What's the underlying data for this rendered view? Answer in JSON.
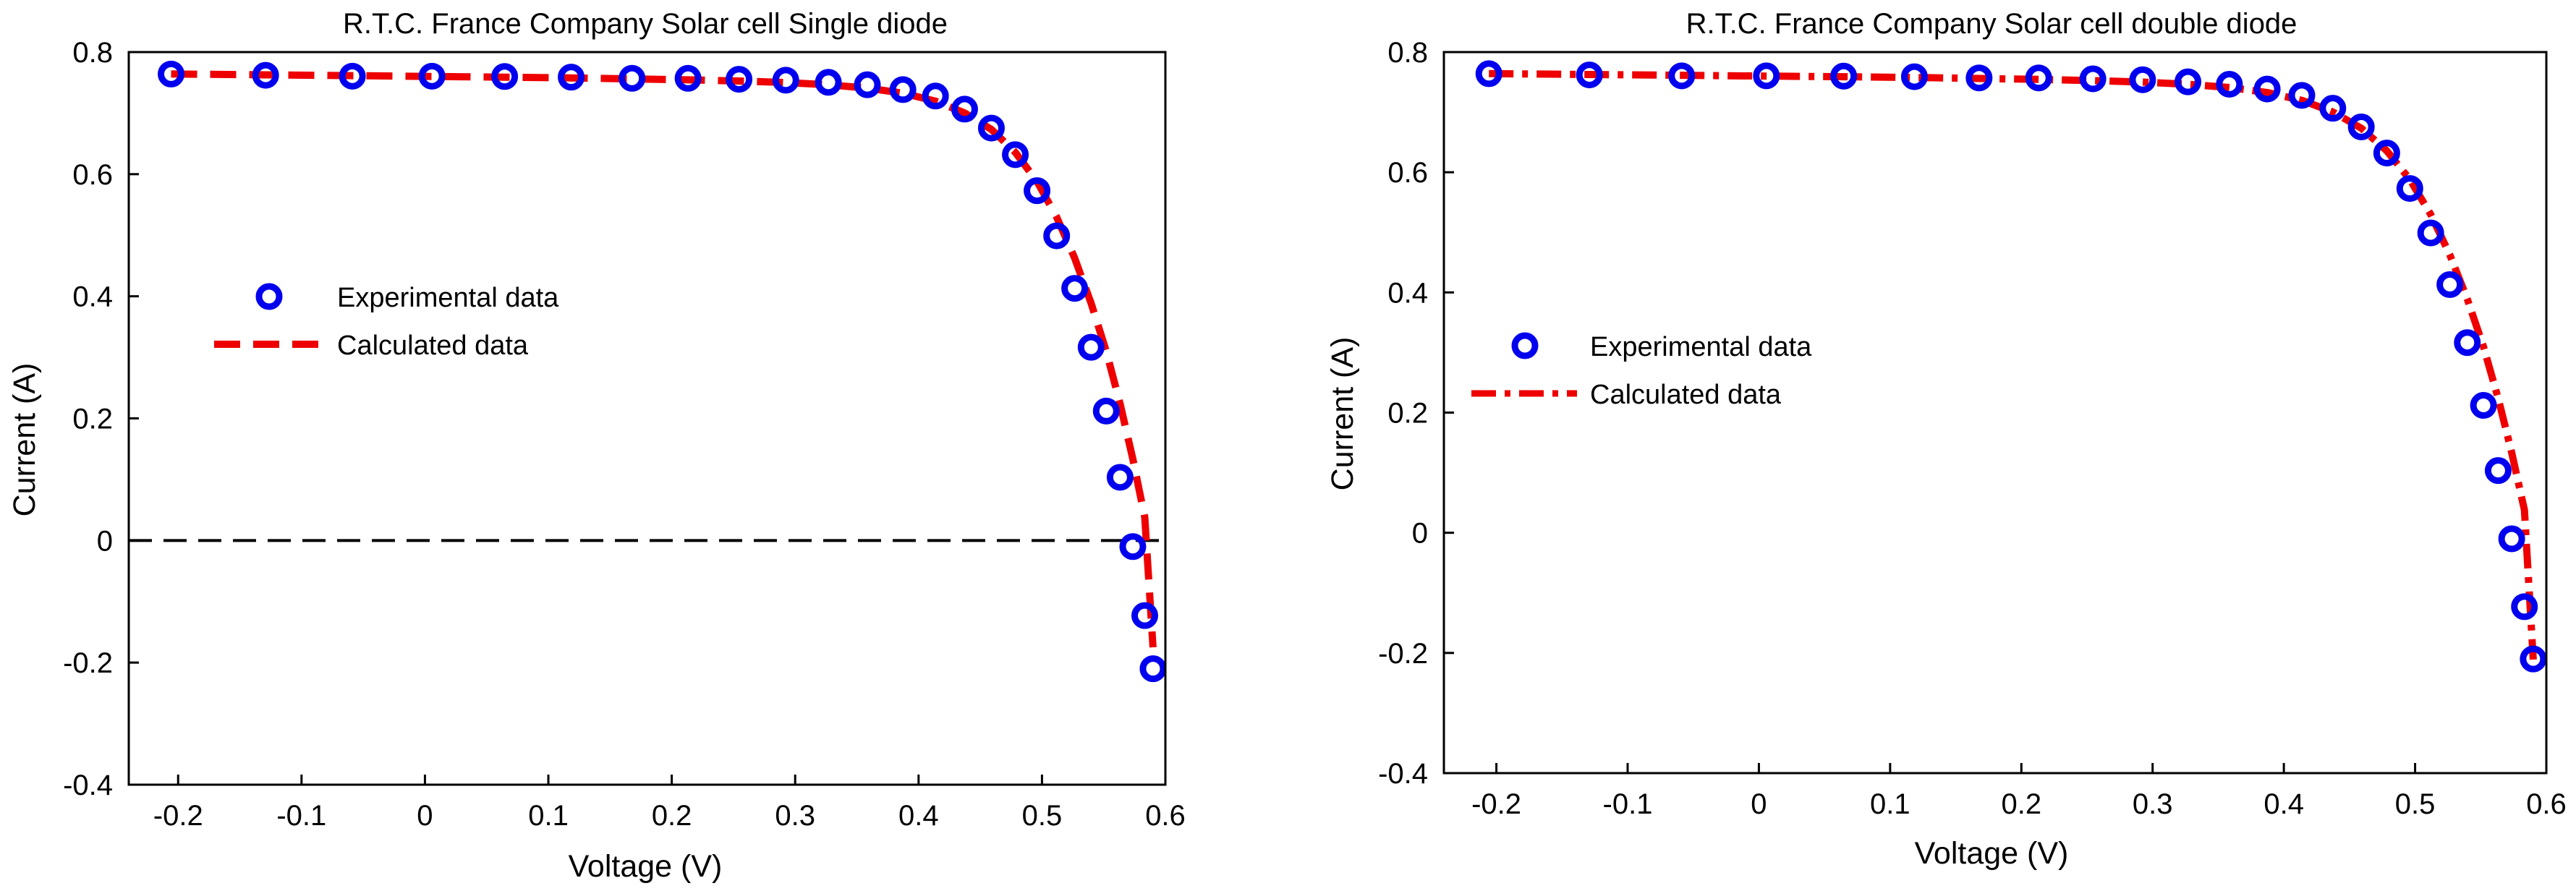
{
  "chart_data": [
    {
      "type": "line",
      "title": "R.T.C. France Company Solar cell Single diode",
      "xlabel": "Voltage (V)",
      "ylabel": "Current (A)",
      "xlim": [
        -0.24,
        0.6
      ],
      "ylim": [
        -0.4,
        0.8
      ],
      "xticks": [
        -0.2,
        -0.1,
        0,
        0.1,
        0.2,
        0.3,
        0.4,
        0.5,
        0.6
      ],
      "xtick_labels": [
        "-0.2",
        "-0.1",
        "0",
        "0.1",
        "0.2",
        "0.3",
        "0.4",
        "0.5",
        "0.6"
      ],
      "yticks": [
        -0.4,
        -0.2,
        0,
        0.2,
        0.4,
        0.6,
        0.8
      ],
      "ytick_labels": [
        "-0.4",
        "-0.2",
        "0",
        "0.2",
        "0.4",
        "0.6",
        "0.8"
      ],
      "grid": false,
      "zero_line": true,
      "legend_position": "middle-left",
      "series": [
        {
          "name": "Experimental data",
          "marker": "circle",
          "color": "#0000ee",
          "x": [
            -0.2057,
            -0.1291,
            -0.0588,
            0.0057,
            0.0646,
            0.1185,
            0.1678,
            0.2132,
            0.2545,
            0.2924,
            0.3269,
            0.3585,
            0.3873,
            0.4137,
            0.4373,
            0.459,
            0.4784,
            0.496,
            0.5119,
            0.5265,
            0.5398,
            0.5521,
            0.5633,
            0.5736,
            0.5833,
            0.59
          ],
          "y": [
            0.764,
            0.762,
            0.7605,
            0.7605,
            0.76,
            0.759,
            0.757,
            0.757,
            0.7555,
            0.754,
            0.7505,
            0.7465,
            0.7385,
            0.728,
            0.7065,
            0.6755,
            0.632,
            0.573,
            0.499,
            0.413,
            0.3165,
            0.212,
            0.1035,
            -0.01,
            -0.123,
            -0.21
          ]
        },
        {
          "name": "Calculated data",
          "line_style": "dashed",
          "color": "#ee0000",
          "x": [
            -0.2057,
            -0.1291,
            -0.0588,
            0.0057,
            0.0646,
            0.1185,
            0.1678,
            0.2132,
            0.2545,
            0.2924,
            0.3269,
            0.3585,
            0.3873,
            0.4137,
            0.4373,
            0.459,
            0.4784,
            0.496,
            0.5119,
            0.5265,
            0.5398,
            0.5521,
            0.5633,
            0.5736,
            0.5833,
            0.59
          ],
          "y": [
            0.7641,
            0.7627,
            0.7614,
            0.7601,
            0.7589,
            0.7577,
            0.7561,
            0.7545,
            0.7526,
            0.7501,
            0.7464,
            0.741,
            0.7327,
            0.7197,
            0.7004,
            0.6733,
            0.6357,
            0.5881,
            0.5297,
            0.4625,
            0.3887,
            0.3097,
            0.2238,
            0.1335,
            0.038,
            -0.175
          ]
        }
      ]
    },
    {
      "type": "line",
      "title": "R.T.C. France Company Solar cell double diode",
      "xlabel": "Voltage (V)",
      "ylabel": "Current (A)",
      "xlim": [
        -0.24,
        0.6
      ],
      "ylim": [
        -0.4,
        0.8
      ],
      "xticks": [
        -0.2,
        -0.1,
        0,
        0.1,
        0.2,
        0.3,
        0.4,
        0.5,
        0.6
      ],
      "xtick_labels": [
        "-0.2",
        "-0.1",
        "0",
        "0.1",
        "0.2",
        "0.3",
        "0.4",
        "0.5",
        "0.6"
      ],
      "yticks": [
        -0.4,
        -0.2,
        0,
        0.2,
        0.4,
        0.6,
        0.8
      ],
      "ytick_labels": [
        "-0.4",
        "-0.2",
        "0",
        "0.2",
        "0.4",
        "0.6",
        "0.8"
      ],
      "grid": false,
      "zero_line": false,
      "legend_position": "middle-left",
      "series": [
        {
          "name": "Experimental data",
          "marker": "circle",
          "color": "#0000ee",
          "x": [
            -0.2057,
            -0.1291,
            -0.0588,
            0.0057,
            0.0646,
            0.1185,
            0.1678,
            0.2132,
            0.2545,
            0.2924,
            0.3269,
            0.3585,
            0.3873,
            0.4137,
            0.4373,
            0.459,
            0.4784,
            0.496,
            0.5119,
            0.5265,
            0.5398,
            0.5521,
            0.5633,
            0.5736,
            0.5833,
            0.59
          ],
          "y": [
            0.764,
            0.762,
            0.7605,
            0.7605,
            0.76,
            0.759,
            0.757,
            0.757,
            0.7555,
            0.754,
            0.7505,
            0.7465,
            0.7385,
            0.728,
            0.7065,
            0.6755,
            0.632,
            0.573,
            0.499,
            0.413,
            0.3165,
            0.212,
            0.1035,
            -0.01,
            -0.123,
            -0.21
          ]
        },
        {
          "name": "Calculated data",
          "line_style": "dash-dot",
          "color": "#ee0000",
          "x": [
            -0.2057,
            -0.1291,
            -0.0588,
            0.0057,
            0.0646,
            0.1185,
            0.1678,
            0.2132,
            0.2545,
            0.2924,
            0.3269,
            0.3585,
            0.3873,
            0.4137,
            0.4373,
            0.459,
            0.4784,
            0.496,
            0.5119,
            0.5265,
            0.5398,
            0.5521,
            0.5633,
            0.5736,
            0.5833,
            0.59
          ],
          "y": [
            0.7641,
            0.7627,
            0.7614,
            0.7601,
            0.7589,
            0.7577,
            0.7561,
            0.7545,
            0.7526,
            0.7501,
            0.7464,
            0.741,
            0.7327,
            0.7197,
            0.7004,
            0.6733,
            0.6357,
            0.5881,
            0.5297,
            0.4625,
            0.3887,
            0.3097,
            0.2238,
            0.1335,
            0.038,
            -0.211
          ]
        }
      ]
    }
  ]
}
